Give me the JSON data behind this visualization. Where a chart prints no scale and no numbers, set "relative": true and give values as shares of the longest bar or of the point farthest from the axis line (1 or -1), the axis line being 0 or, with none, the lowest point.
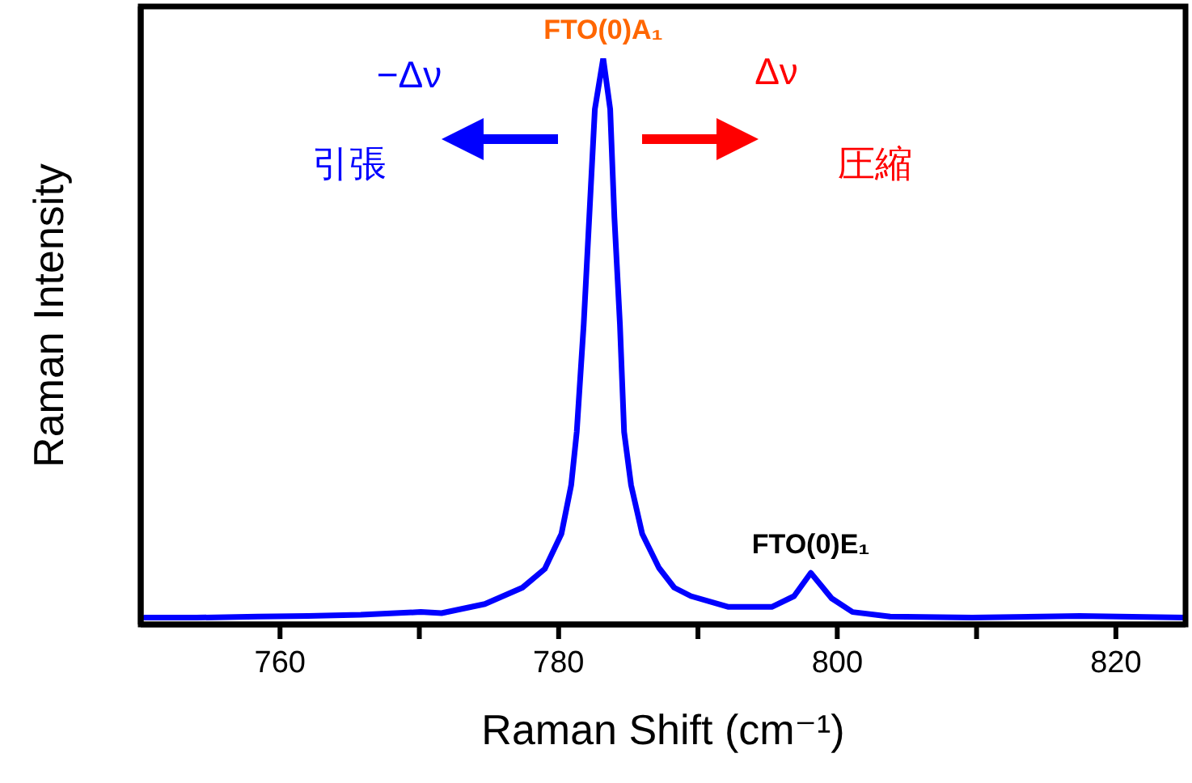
{
  "chart_data": {
    "type": "line",
    "relative": true,
    "xlabel": "Raman Shift (cm⁻¹)",
    "ylabel": "Raman Intensity",
    "color": "#0000ff",
    "marker": "none",
    "x": [
      750.3,
      754.0,
      758.4,
      762.0,
      765.8,
      770.1,
      771.6,
      774.7,
      777.4,
      779.0,
      780.2,
      780.9,
      781.3,
      781.8,
      782.2,
      782.6,
      783.2,
      783.7,
      784.0,
      784.4,
      784.7,
      785.2,
      786.0,
      787.2,
      788.3,
      789.5,
      792.2,
      795.3,
      796.9,
      798.1,
      799.6,
      801.1,
      803.8,
      809.7,
      817.4,
      825.0
    ],
    "values": [
      0.012,
      0.012,
      0.014,
      0.015,
      0.017,
      0.022,
      0.02,
      0.036,
      0.065,
      0.098,
      0.16,
      0.246,
      0.34,
      0.53,
      0.72,
      0.91,
      1.0,
      0.91,
      0.72,
      0.53,
      0.34,
      0.246,
      0.16,
      0.1,
      0.065,
      0.05,
      0.031,
      0.031,
      0.05,
      0.091,
      0.046,
      0.022,
      0.014,
      0.012,
      0.015,
      0.012
    ],
    "xlim": [
      750,
      825
    ],
    "xticks": [
      760,
      {
        "value": 770,
        "label": null
      },
      780,
      {
        "value": 790,
        "label": null
      },
      800,
      {
        "value": 810,
        "label": null
      },
      820
    ],
    "annotations": [
      {
        "text": "FTO(0)A₁",
        "x": 783.2,
        "y": 1.0
      },
      {
        "text": "FTO(0)E₁",
        "x": 798.1,
        "y": 0.091
      },
      "−Δν",
      "引張",
      "Δν",
      "圧縮"
    ]
  }
}
